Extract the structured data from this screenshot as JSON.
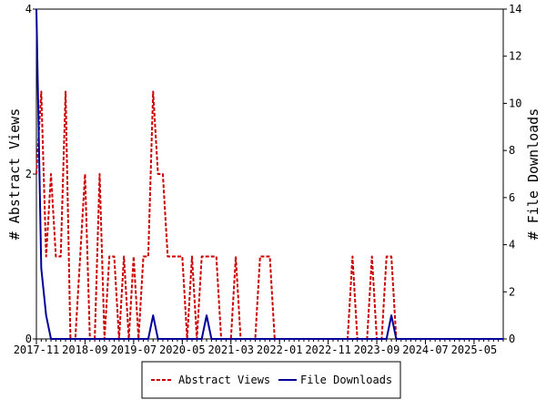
{
  "chart_data": {
    "type": "line",
    "title": "",
    "x_tick_labels": [
      "2017-11",
      "2018-09",
      "2019-07",
      "2020-05",
      "2021-03",
      "2022-01",
      "2022-11",
      "2023-09",
      "2024-07",
      "2025-05"
    ],
    "x_tick_dates": [
      "2017-11",
      "2018-09",
      "2019-07",
      "2020-05",
      "2021-03",
      "2022-01",
      "2022-11",
      "2023-09",
      "2024-07",
      "2025-05"
    ],
    "x_range": [
      "2017-11",
      "2025-11"
    ],
    "y_left": {
      "label": "# Abstract Views",
      "range": [
        0,
        4
      ],
      "ticks": [
        "0",
        "2",
        "4"
      ]
    },
    "y_right": {
      "label": "# File Downloads",
      "range": [
        0,
        14
      ],
      "ticks": [
        "0",
        "2",
        "4",
        "6",
        "8",
        "10",
        "12",
        "14"
      ]
    },
    "grid": false,
    "legend": {
      "placement": "bottom-center"
    },
    "series": [
      {
        "name": "Abstract Views",
        "axis": "left",
        "color": "#cc0000",
        "dash": true,
        "points": [
          [
            "2017-11",
            2
          ],
          [
            "2017-12",
            3
          ],
          [
            "2018-01",
            1
          ],
          [
            "2018-02",
            2
          ],
          [
            "2018-03",
            1
          ],
          [
            "2018-04",
            1
          ],
          [
            "2018-05",
            3
          ],
          [
            "2018-06",
            0
          ],
          [
            "2018-07",
            0
          ],
          [
            "2018-08",
            1
          ],
          [
            "2018-09",
            2
          ],
          [
            "2018-10",
            0
          ],
          [
            "2018-11",
            0
          ],
          [
            "2018-12",
            2
          ],
          [
            "2019-01",
            0
          ],
          [
            "2019-02",
            1
          ],
          [
            "2019-03",
            1
          ],
          [
            "2019-04",
            0
          ],
          [
            "2019-05",
            1
          ],
          [
            "2019-06",
            0
          ],
          [
            "2019-07",
            1
          ],
          [
            "2019-08",
            0
          ],
          [
            "2019-09",
            1
          ],
          [
            "2019-10",
            1
          ],
          [
            "2019-11",
            3
          ],
          [
            "2019-12",
            2
          ],
          [
            "2020-01",
            2
          ],
          [
            "2020-02",
            1
          ],
          [
            "2020-03",
            1
          ],
          [
            "2020-04",
            1
          ],
          [
            "2020-05",
            1
          ],
          [
            "2020-06",
            0
          ],
          [
            "2020-07",
            1
          ],
          [
            "2020-08",
            0
          ],
          [
            "2020-09",
            1
          ],
          [
            "2020-10",
            1
          ],
          [
            "2020-11",
            1
          ],
          [
            "2020-12",
            1
          ],
          [
            "2021-01",
            0
          ],
          [
            "2021-02",
            0
          ],
          [
            "2021-03",
            0
          ],
          [
            "2021-04",
            1
          ],
          [
            "2021-05",
            0
          ],
          [
            "2021-06",
            0
          ],
          [
            "2021-07",
            0
          ],
          [
            "2021-08",
            0
          ],
          [
            "2021-09",
            1
          ],
          [
            "2021-10",
            1
          ],
          [
            "2021-11",
            1
          ],
          [
            "2021-12",
            0
          ],
          [
            "2022-01",
            0
          ],
          [
            "2022-02",
            0
          ],
          [
            "2022-03",
            0
          ],
          [
            "2022-04",
            0
          ],
          [
            "2022-05",
            0
          ],
          [
            "2022-06",
            0
          ],
          [
            "2022-07",
            0
          ],
          [
            "2022-08",
            0
          ],
          [
            "2022-09",
            0
          ],
          [
            "2022-10",
            0
          ],
          [
            "2022-11",
            0
          ],
          [
            "2022-12",
            0
          ],
          [
            "2023-01",
            0
          ],
          [
            "2023-02",
            0
          ],
          [
            "2023-03",
            0
          ],
          [
            "2023-04",
            1
          ],
          [
            "2023-05",
            0
          ],
          [
            "2023-06",
            0
          ],
          [
            "2023-07",
            0
          ],
          [
            "2023-08",
            1
          ],
          [
            "2023-09",
            0
          ],
          [
            "2023-10",
            0
          ],
          [
            "2023-11",
            1
          ],
          [
            "2023-12",
            1
          ],
          [
            "2024-01",
            0
          ],
          [
            "2024-02",
            0
          ],
          [
            "2024-03",
            0
          ],
          [
            "2024-04",
            0
          ],
          [
            "2024-05",
            0
          ],
          [
            "2024-06",
            0
          ],
          [
            "2024-07",
            0
          ],
          [
            "2024-08",
            0
          ],
          [
            "2024-09",
            0
          ],
          [
            "2024-10",
            0
          ],
          [
            "2024-11",
            0
          ],
          [
            "2024-12",
            0
          ],
          [
            "2025-01",
            0
          ],
          [
            "2025-02",
            0
          ],
          [
            "2025-03",
            0
          ],
          [
            "2025-04",
            0
          ],
          [
            "2025-05",
            0
          ],
          [
            "2025-06",
            0
          ],
          [
            "2025-07",
            0
          ],
          [
            "2025-08",
            0
          ],
          [
            "2025-09",
            0
          ],
          [
            "2025-10",
            0
          ],
          [
            "2025-11",
            0
          ]
        ]
      },
      {
        "name": "File Downloads",
        "axis": "right",
        "color": "#000099",
        "dash": false,
        "points": [
          [
            "2017-11",
            14
          ],
          [
            "2017-12",
            3
          ],
          [
            "2018-01",
            1
          ],
          [
            "2018-02",
            0
          ],
          [
            "2018-03",
            0
          ],
          [
            "2018-04",
            0
          ],
          [
            "2018-05",
            0
          ],
          [
            "2018-06",
            0
          ],
          [
            "2018-07",
            0
          ],
          [
            "2018-08",
            0
          ],
          [
            "2018-09",
            0
          ],
          [
            "2018-10",
            0
          ],
          [
            "2018-11",
            0
          ],
          [
            "2018-12",
            0
          ],
          [
            "2019-01",
            0
          ],
          [
            "2019-02",
            0
          ],
          [
            "2019-03",
            0
          ],
          [
            "2019-04",
            0
          ],
          [
            "2019-05",
            0
          ],
          [
            "2019-06",
            0
          ],
          [
            "2019-07",
            0
          ],
          [
            "2019-08",
            0
          ],
          [
            "2019-09",
            0
          ],
          [
            "2019-10",
            0
          ],
          [
            "2019-11",
            1
          ],
          [
            "2019-12",
            0
          ],
          [
            "2020-01",
            0
          ],
          [
            "2020-02",
            0
          ],
          [
            "2020-03",
            0
          ],
          [
            "2020-04",
            0
          ],
          [
            "2020-05",
            0
          ],
          [
            "2020-06",
            0
          ],
          [
            "2020-07",
            0
          ],
          [
            "2020-08",
            0
          ],
          [
            "2020-09",
            0
          ],
          [
            "2020-10",
            1
          ],
          [
            "2020-11",
            0
          ],
          [
            "2020-12",
            0
          ],
          [
            "2021-01",
            0
          ],
          [
            "2021-02",
            0
          ],
          [
            "2021-03",
            0
          ],
          [
            "2021-04",
            0
          ],
          [
            "2021-05",
            0
          ],
          [
            "2021-06",
            0
          ],
          [
            "2021-07",
            0
          ],
          [
            "2021-08",
            0
          ],
          [
            "2021-09",
            0
          ],
          [
            "2021-10",
            0
          ],
          [
            "2021-11",
            0
          ],
          [
            "2021-12",
            0
          ],
          [
            "2022-01",
            0
          ],
          [
            "2022-02",
            0
          ],
          [
            "2022-03",
            0
          ],
          [
            "2022-04",
            0
          ],
          [
            "2022-05",
            0
          ],
          [
            "2022-06",
            0
          ],
          [
            "2022-07",
            0
          ],
          [
            "2022-08",
            0
          ],
          [
            "2022-09",
            0
          ],
          [
            "2022-10",
            0
          ],
          [
            "2022-11",
            0
          ],
          [
            "2022-12",
            0
          ],
          [
            "2023-01",
            0
          ],
          [
            "2023-02",
            0
          ],
          [
            "2023-03",
            0
          ],
          [
            "2023-04",
            0
          ],
          [
            "2023-05",
            0
          ],
          [
            "2023-06",
            0
          ],
          [
            "2023-07",
            0
          ],
          [
            "2023-08",
            0
          ],
          [
            "2023-09",
            0
          ],
          [
            "2023-10",
            0
          ],
          [
            "2023-11",
            0
          ],
          [
            "2023-12",
            1
          ],
          [
            "2024-01",
            0
          ],
          [
            "2024-02",
            0
          ],
          [
            "2024-03",
            0
          ],
          [
            "2024-04",
            0
          ],
          [
            "2024-05",
            0
          ],
          [
            "2024-06",
            0
          ],
          [
            "2024-07",
            0
          ],
          [
            "2024-08",
            0
          ],
          [
            "2024-09",
            0
          ],
          [
            "2024-10",
            0
          ],
          [
            "2024-11",
            0
          ],
          [
            "2024-12",
            0
          ],
          [
            "2025-01",
            0
          ],
          [
            "2025-02",
            0
          ],
          [
            "2025-03",
            0
          ],
          [
            "2025-04",
            0
          ],
          [
            "2025-05",
            0
          ],
          [
            "2025-06",
            0
          ],
          [
            "2025-07",
            0
          ],
          [
            "2025-08",
            0
          ],
          [
            "2025-09",
            0
          ],
          [
            "2025-10",
            0
          ],
          [
            "2025-11",
            0
          ]
        ]
      }
    ]
  }
}
